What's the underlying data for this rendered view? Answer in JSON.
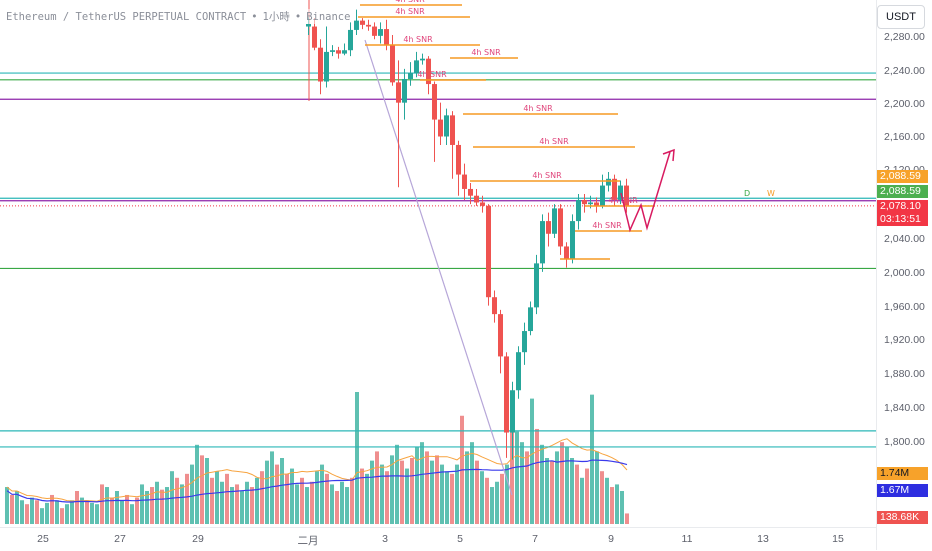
{
  "header": {
    "symbol": "Ethereum / TetherUS PERPETUAL CONTRACT",
    "interval": "1小時",
    "exchange": "Binance"
  },
  "currency_button": "USDT",
  "price_axis": {
    "ticks": [
      "2,280.00",
      "2,240.00",
      "2,200.00",
      "2,160.00",
      "2,120.00",
      "2,040.00",
      "2,000.00",
      "1,960.00",
      "1,920.00",
      "1,880.00",
      "1,840.00",
      "1,800.00"
    ],
    "badges": {
      "orange_price": "2,088.59",
      "green_price": "2,088.59",
      "last_price": "2,078.10",
      "countdown": "03:13:51",
      "vol_ma1": "1.74M",
      "vol_ma2": "1.67M",
      "volume": "138.68K"
    }
  },
  "time_axis": {
    "ticks": [
      "25",
      "27",
      "29",
      "二月",
      "3",
      "5",
      "7",
      "9",
      "11",
      "13",
      "15"
    ]
  },
  "annotations": {
    "snr_label": "4h SNR",
    "d_label": "D",
    "w_label": "W"
  },
  "colors": {
    "up": "#26a69a",
    "down": "#ef5350",
    "up_vol": "#5fc0b1",
    "down_vol": "#ef8e8e",
    "snr": "#f59a23",
    "teal_line": "#2bb7b7",
    "green_line": "#39a845",
    "purple_line": "#8e24aa",
    "pink_arrow": "#d81b60",
    "ma_orange": "#f7a440",
    "ma_blue": "#3a3aec"
  },
  "chart_data": {
    "type": "candlestick",
    "y_range": [
      1770,
      2310
    ],
    "horizontal_levels": [
      {
        "price": 2235,
        "color": "teal"
      },
      {
        "price": 2227,
        "color": "green"
      },
      {
        "price": 2204,
        "color": "purple"
      },
      {
        "price": 2087,
        "color": "teal"
      },
      {
        "price": 2084,
        "color": "purple"
      },
      {
        "price": 2004,
        "color": "green"
      },
      {
        "price": 1812,
        "color": "teal"
      },
      {
        "price": 1793,
        "color": "teal"
      }
    ],
    "candles": [
      [
        2290,
        2293,
        2280,
        2301
      ],
      [
        2290,
        2265,
        2262,
        2300
      ],
      [
        2265,
        2225,
        2210,
        2275
      ],
      [
        2225,
        2260,
        2218,
        2290
      ],
      [
        2260,
        2262,
        2255,
        2268
      ],
      [
        2262,
        2258,
        2252,
        2266
      ],
      [
        2258,
        2262,
        2256,
        2270
      ],
      [
        2262,
        2286,
        2255,
        2295
      ],
      [
        2286,
        2297,
        2280,
        2310
      ],
      [
        2297,
        2292,
        2287,
        2300
      ],
      [
        2292,
        2290,
        2285,
        2298
      ],
      [
        2290,
        2279,
        2275,
        2295
      ],
      [
        2279,
        2287,
        2270,
        2295
      ],
      [
        2287,
        2268,
        2262,
        2298
      ],
      [
        2268,
        2224,
        2220,
        2280
      ],
      [
        2224,
        2200,
        2100,
        2250
      ],
      [
        2200,
        2228,
        2180,
        2240
      ],
      [
        2228,
        2235,
        2220,
        2248
      ],
      [
        2235,
        2250,
        2230,
        2260
      ],
      [
        2250,
        2252,
        2245,
        2258
      ],
      [
        2252,
        2222,
        2210,
        2255
      ],
      [
        2222,
        2180,
        2130,
        2225
      ],
      [
        2180,
        2160,
        2150,
        2200
      ],
      [
        2160,
        2185,
        2150,
        2193
      ],
      [
        2185,
        2150,
        2110,
        2190
      ],
      [
        2150,
        2115,
        2090,
        2155
      ],
      [
        2115,
        2098,
        2085,
        2128
      ],
      [
        2098,
        2090,
        2080,
        2105
      ],
      [
        2090,
        2082,
        2078,
        2098
      ],
      [
        2082,
        2078,
        2070,
        2090
      ],
      [
        2078,
        1970,
        1960,
        2080
      ],
      [
        1970,
        1950,
        1940,
        1978
      ],
      [
        1950,
        1900,
        1880,
        1955
      ],
      [
        1900,
        1810,
        1780,
        1905
      ],
      [
        1810,
        1860,
        1778,
        1870
      ],
      [
        1860,
        1905,
        1850,
        1912
      ],
      [
        1905,
        1930,
        1890,
        1940
      ],
      [
        1930,
        1958,
        1925,
        1965
      ],
      [
        1958,
        2010,
        1950,
        2020
      ],
      [
        2010,
        2060,
        2000,
        2068
      ],
      [
        2060,
        2045,
        2030,
        2070
      ],
      [
        2045,
        2075,
        2040,
        2080
      ],
      [
        2075,
        2030,
        2020,
        2080
      ],
      [
        2030,
        2015,
        2005,
        2035
      ],
      [
        2015,
        2060,
        2010,
        2068
      ],
      [
        2060,
        2085,
        2050,
        2092
      ],
      [
        2085,
        2080,
        2070,
        2092
      ],
      [
        2080,
        2082,
        2075,
        2090
      ],
      [
        2082,
        2078,
        2070,
        2088
      ],
      [
        2078,
        2102,
        2075,
        2115
      ],
      [
        2102,
        2110,
        2095,
        2118
      ],
      [
        2110,
        2085,
        2078,
        2115
      ],
      [
        2085,
        2102,
        2080,
        2108
      ],
      [
        2102,
        2078,
        2070,
        2110
      ]
    ],
    "candle_x_start": 306,
    "candle_spacing": 6.0,
    "volumes": [
      0.28,
      0.22,
      0.25,
      0.18,
      0.15,
      0.2,
      0.18,
      0.12,
      0.16,
      0.22,
      0.18,
      0.12,
      0.15,
      0.18,
      0.25,
      0.2,
      0.18,
      0.16,
      0.15,
      0.3,
      0.28,
      0.2,
      0.25,
      0.18,
      0.22,
      0.15,
      0.2,
      0.3,
      0.25,
      0.28,
      0.32,
      0.26,
      0.28,
      0.4,
      0.35,
      0.3,
      0.38,
      0.45,
      0.6,
      0.52,
      0.5,
      0.35,
      0.4,
      0.32,
      0.38,
      0.28,
      0.3,
      0.25,
      0.32,
      0.28,
      0.35,
      0.4,
      0.48,
      0.55,
      0.45,
      0.5,
      0.38,
      0.42,
      0.3,
      0.35,
      0.28,
      0.32,
      0.4,
      0.45,
      0.38,
      0.3,
      0.25,
      0.32,
      0.28,
      0.35,
      1.0,
      0.42,
      0.38,
      0.48,
      0.55,
      0.45,
      0.4,
      0.52,
      0.6,
      0.48,
      0.42,
      0.5,
      0.58,
      0.62,
      0.55,
      0.48,
      0.52,
      0.45,
      0.4,
      0.38,
      0.45,
      0.82,
      0.55,
      0.62,
      0.48,
      0.4,
      0.35,
      0.28,
      0.32,
      0.38,
      0.45,
      0.88,
      0.7,
      0.62,
      0.55,
      0.95,
      0.72,
      0.6,
      0.5,
      0.48,
      0.55,
      0.62,
      0.58,
      0.5,
      0.45,
      0.35,
      0.42,
      0.98,
      0.55,
      0.4,
      0.35,
      0.28,
      0.3,
      0.25,
      0.08
    ],
    "volume_x_start": 5,
    "volume_spacing": 5.0
  }
}
